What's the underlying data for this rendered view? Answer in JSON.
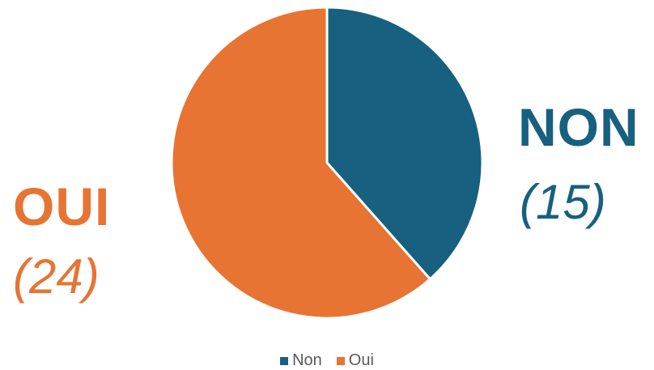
{
  "chart_data": {
    "type": "pie",
    "categories": [
      "Non",
      "Oui"
    ],
    "values": [
      15,
      24
    ],
    "colors": [
      "#17607f",
      "#e77433"
    ],
    "legend_position": "bottom",
    "slice_labels": [
      {
        "name": "NON",
        "count": "(15)"
      },
      {
        "name": "OUI",
        "count": "(24)"
      }
    ]
  },
  "legend": {
    "items": [
      {
        "label": "Non",
        "color": "#17607f"
      },
      {
        "label": "Oui",
        "color": "#e77433"
      }
    ]
  }
}
